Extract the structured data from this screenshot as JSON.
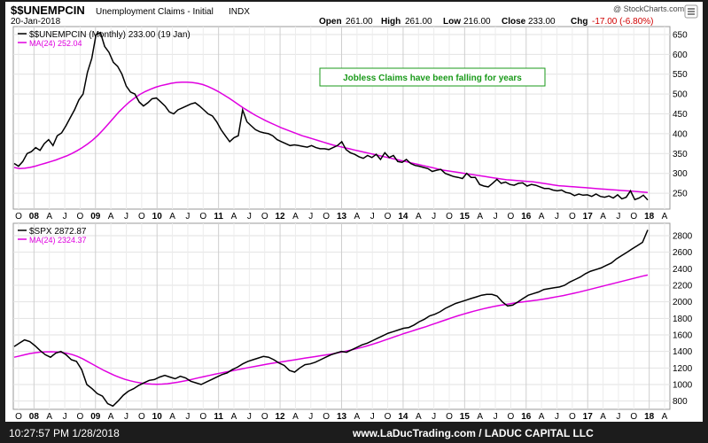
{
  "header": {
    "symbol": "$$UNEMPCIN",
    "name": "Unemployment Claims - Initial",
    "exchange": "INDX",
    "date": "20-Jan-2018",
    "quote": {
      "open_label": "Open",
      "open": "261.00",
      "high_label": "High",
      "high": "261.00",
      "low_label": "Low",
      "low": "216.00",
      "close_label": "Close",
      "close": "233.00",
      "chg_label": "Chg",
      "chg": "-17.00 (-6.80%)"
    },
    "watermark": "@ StockCharts.com"
  },
  "footer": {
    "timestamp": "10:27:57 PM 1/28/2018",
    "credit": "www.LaDucTrading.com / LADUC CAPITAL LLC"
  },
  "colors": {
    "price_line": "#000000",
    "moving_average": "#e000e0",
    "annotation_text": "#1a9a1a",
    "annotation_border": "#1a9a1a",
    "down_change": "#d00000",
    "background": "#ffffff",
    "grid": "#e2e2e2"
  },
  "chart_data": [
    {
      "type": "line",
      "legend": [
        {
          "label": "$$UNEMPCIN (Monthly) 233.00 (19 Jan)"
        },
        {
          "label": "MA(24) 252.04"
        }
      ],
      "annotation": "Jobless Claims have been falling for years",
      "ylim": [
        210,
        670
      ],
      "yticks": [
        250,
        300,
        350,
        400,
        450,
        500,
        550,
        600,
        650
      ],
      "x_tick_labels": [
        "O",
        "08",
        "A",
        "J",
        "O",
        "09",
        "A",
        "J",
        "O",
        "10",
        "A",
        "J",
        "O",
        "11",
        "A",
        "J",
        "O",
        "12",
        "A",
        "J",
        "O",
        "13",
        "A",
        "J",
        "O",
        "14",
        "A",
        "J",
        "O",
        "15",
        "A",
        "J",
        "O",
        "16",
        "A",
        "J",
        "O",
        "17",
        "A",
        "J",
        "O",
        "18",
        "A"
      ],
      "series": [
        {
          "name": "$$UNEMPCIN (Monthly)",
          "values": [
            325,
            318,
            330,
            350,
            355,
            365,
            358,
            375,
            385,
            370,
            395,
            402,
            420,
            440,
            460,
            485,
            500,
            555,
            590,
            650,
            655,
            620,
            605,
            580,
            570,
            550,
            520,
            505,
            500,
            480,
            470,
            478,
            488,
            490,
            480,
            470,
            455,
            450,
            460,
            465,
            470,
            475,
            478,
            470,
            460,
            450,
            445,
            430,
            410,
            395,
            380,
            390,
            395,
            460,
            430,
            420,
            410,
            405,
            402,
            400,
            395,
            385,
            380,
            375,
            370,
            372,
            370,
            368,
            366,
            370,
            365,
            362,
            362,
            360,
            365,
            370,
            380,
            360,
            352,
            348,
            342,
            338,
            345,
            340,
            348,
            335,
            352,
            340,
            345,
            330,
            328,
            335,
            325,
            320,
            318,
            315,
            312,
            305,
            308,
            310,
            300,
            296,
            292,
            290,
            287,
            300,
            290,
            290,
            272,
            268,
            266,
            275,
            285,
            275,
            278,
            272,
            270,
            275,
            276,
            268,
            272,
            270,
            266,
            262,
            262,
            258,
            256,
            258,
            252,
            250,
            244,
            248,
            245,
            246,
            242,
            248,
            242,
            240,
            243,
            238,
            246,
            236,
            240,
            256,
            234,
            238,
            245,
            233
          ],
          "visible_points": 118
        },
        {
          "name": "MA(24)",
          "values": [
            315,
            312,
            313,
            315,
            318,
            322,
            326,
            330,
            334,
            339,
            344,
            350,
            357,
            365,
            374,
            384,
            396,
            410,
            425,
            440,
            455,
            468,
            480,
            490,
            499,
            506,
            512,
            517,
            521,
            524,
            527,
            529,
            530,
            530,
            529,
            527,
            524,
            519,
            513,
            506,
            498,
            490,
            481,
            472,
            463,
            455,
            447,
            440,
            433,
            427,
            421,
            415,
            410,
            405,
            400,
            395,
            391,
            387,
            383,
            379,
            375,
            371,
            368,
            365,
            362,
            359,
            356,
            353,
            350,
            347,
            344,
            341,
            338,
            335,
            332,
            329,
            326,
            323,
            320,
            317,
            314,
            311,
            308,
            306,
            304,
            302,
            300,
            298,
            296,
            294,
            292,
            290,
            288,
            286,
            284,
            283,
            282,
            281,
            280,
            279,
            277,
            275,
            273,
            271,
            269,
            268,
            267,
            266,
            265,
            264,
            263,
            262,
            261,
            260,
            259,
            258,
            257,
            256,
            255,
            254,
            253,
            252
          ],
          "visible_points": 112
        }
      ]
    },
    {
      "type": "line",
      "legend": [
        {
          "label": "$SPX 2872.87"
        },
        {
          "label": "MA(24) 2324.37"
        }
      ],
      "ylim": [
        700,
        2950
      ],
      "yticks": [
        800,
        1000,
        1200,
        1400,
        1600,
        1800,
        2000,
        2200,
        2400,
        2600,
        2800
      ],
      "x_tick_labels": [
        "O",
        "08",
        "A",
        "J",
        "O",
        "09",
        "A",
        "J",
        "O",
        "10",
        "A",
        "J",
        "O",
        "11",
        "A",
        "J",
        "O",
        "12",
        "A",
        "J",
        "O",
        "13",
        "A",
        "J",
        "O",
        "14",
        "A",
        "J",
        "O",
        "15",
        "A",
        "J",
        "O",
        "16",
        "A",
        "J",
        "O",
        "17",
        "A",
        "J",
        "O",
        "18",
        "A"
      ],
      "series": [
        {
          "name": "$SPX",
          "values": [
            1460,
            1500,
            1540,
            1520,
            1470,
            1410,
            1360,
            1330,
            1380,
            1400,
            1360,
            1300,
            1280,
            1180,
            1000,
            950,
            890,
            860,
            770,
            740,
            800,
            870,
            920,
            950,
            990,
            1020,
            1050,
            1060,
            1090,
            1110,
            1090,
            1070,
            1100,
            1080,
            1040,
            1020,
            1000,
            1030,
            1060,
            1090,
            1120,
            1140,
            1180,
            1210,
            1250,
            1280,
            1300,
            1320,
            1340,
            1330,
            1300,
            1260,
            1230,
            1170,
            1150,
            1200,
            1240,
            1250,
            1270,
            1300,
            1330,
            1360,
            1380,
            1400,
            1390,
            1420,
            1450,
            1480,
            1500,
            1530,
            1560,
            1590,
            1620,
            1640,
            1660,
            1680,
            1690,
            1720,
            1760,
            1790,
            1830,
            1850,
            1880,
            1920,
            1950,
            1980,
            2000,
            2020,
            2040,
            2060,
            2080,
            2090,
            2090,
            2070,
            2000,
            1950,
            1960,
            2000,
            2040,
            2080,
            2100,
            2120,
            2150,
            2160,
            2170,
            2180,
            2200,
            2240,
            2270,
            2300,
            2340,
            2370,
            2390,
            2410,
            2440,
            2470,
            2520,
            2560,
            2600,
            2640,
            2680,
            2720,
            2870
          ]
        },
        {
          "name": "MA(24)",
          "values": [
            1330,
            1345,
            1360,
            1375,
            1385,
            1392,
            1395,
            1396,
            1394,
            1388,
            1378,
            1362,
            1340,
            1310,
            1275,
            1240,
            1205,
            1170,
            1140,
            1110,
            1085,
            1062,
            1045,
            1030,
            1018,
            1010,
            1005,
            1003,
            1005,
            1010,
            1018,
            1028,
            1040,
            1053,
            1068,
            1082,
            1096,
            1110,
            1124,
            1137,
            1150,
            1162,
            1175,
            1188,
            1200,
            1212,
            1224,
            1236,
            1248,
            1258,
            1268,
            1278,
            1288,
            1298,
            1308,
            1318,
            1328,
            1338,
            1348,
            1358,
            1368,
            1380,
            1392,
            1406,
            1420,
            1436,
            1452,
            1470,
            1490,
            1510,
            1532,
            1554,
            1576,
            1598,
            1620,
            1640,
            1660,
            1680,
            1700,
            1722,
            1744,
            1766,
            1788,
            1810,
            1830,
            1850,
            1868,
            1886,
            1902,
            1918,
            1932,
            1946,
            1958,
            1968,
            1978,
            1988,
            1996,
            2004,
            2012,
            2020,
            2030,
            2040,
            2052,
            2064,
            2076,
            2090,
            2104,
            2118,
            2134,
            2150,
            2166,
            2182,
            2198,
            2214,
            2230,
            2246,
            2262,
            2278,
            2294,
            2310,
            2324
          ]
        }
      ]
    }
  ]
}
